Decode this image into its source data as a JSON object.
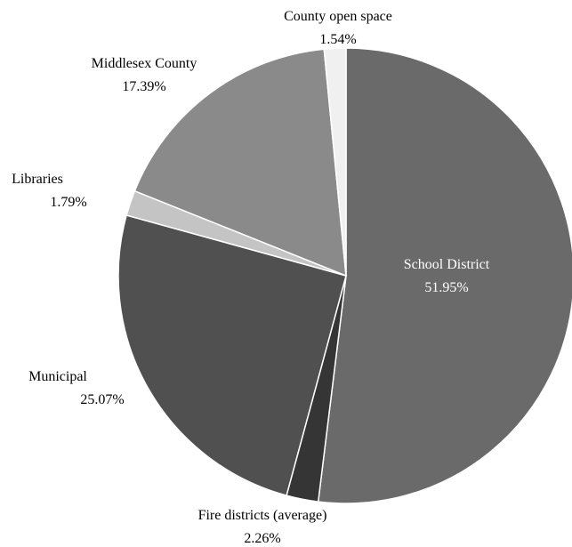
{
  "chart_data": {
    "type": "pie",
    "title": "",
    "start_angle_deg": 0,
    "direction": "clockwise",
    "slices": [
      {
        "label": "School District",
        "value": 51.95,
        "value_label": "51.95%",
        "color": "#6a6a6a",
        "label_inside": true
      },
      {
        "label": "Fire districts (average)",
        "value": 2.26,
        "value_label": "2.26%",
        "color": "#353535",
        "label_inside": false
      },
      {
        "label": "Municipal",
        "value": 25.07,
        "value_label": "25.07%",
        "color": "#505050",
        "label_inside": false
      },
      {
        "label": "Libraries",
        "value": 1.79,
        "value_label": "1.79%",
        "color": "#c4c4c4",
        "label_inside": false
      },
      {
        "label": "Middlesex County",
        "value": 17.39,
        "value_label": "17.39%",
        "color": "#8a8a8a",
        "label_inside": false
      },
      {
        "label": "County open space",
        "value": 1.54,
        "value_label": "1.54%",
        "color": "#f0f0f0",
        "label_inside": false
      }
    ]
  }
}
